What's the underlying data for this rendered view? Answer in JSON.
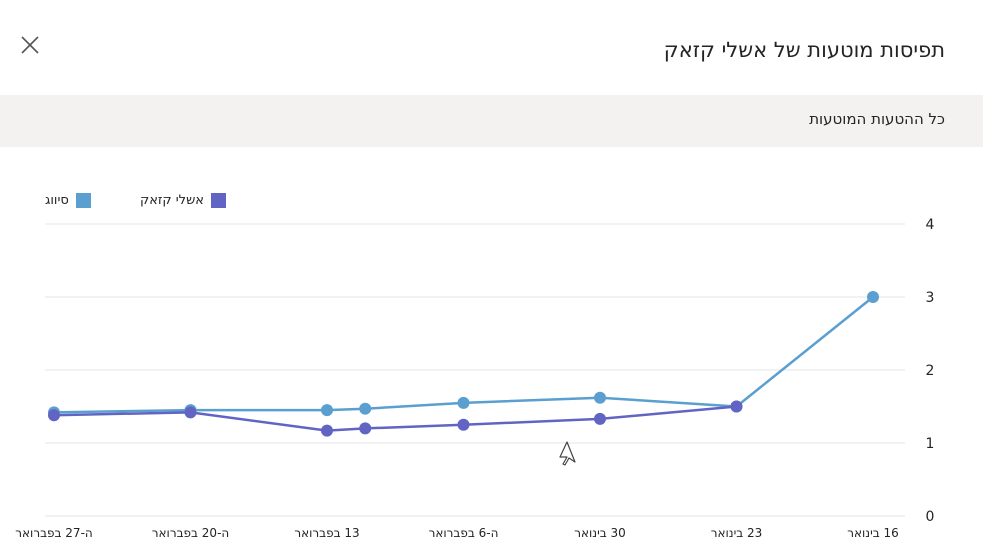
{
  "header": {
    "title": "תפיסות מוטעות של אשלי קזאק",
    "close_label": "close"
  },
  "section": {
    "title": "כל ההטעות המוטעות"
  },
  "colors": {
    "student": "#6264c4",
    "class_avg": "#5a9fcf",
    "grid": "#e5e5e5",
    "section_bg": "#f3f2f1"
  },
  "chart_data": {
    "type": "line",
    "categories": [
      "16 בינואר",
      "23 בינואר",
      "30 בינואר",
      "ה-6 בפברואר",
      "13 בפברואר",
      "ה-20 בפברואר",
      "ה-27 בפברואר"
    ],
    "ylim": [
      0,
      4
    ],
    "yticks": [
      "0",
      "1",
      "2",
      "3",
      "4"
    ],
    "legend_position": "top-left",
    "grid": true,
    "series": [
      {
        "name": "סיווג",
        "color": "#5a9fcf",
        "points": [
          {
            "x": 0,
            "y": 3.0
          },
          {
            "x": 1,
            "y": 1.5
          },
          {
            "x": 2,
            "y": 1.62
          },
          {
            "x": 3,
            "y": 1.55
          },
          {
            "x": 3.72,
            "y": 1.47
          },
          {
            "x": 4,
            "y": 1.45
          },
          {
            "x": 5,
            "y": 1.45
          },
          {
            "x": 6,
            "y": 1.42
          }
        ]
      },
      {
        "name": "אשלי קזאק",
        "color": "#6264c4",
        "points": [
          {
            "x": 1,
            "y": 1.5
          },
          {
            "x": 2,
            "y": 1.33
          },
          {
            "x": 3,
            "y": 1.25
          },
          {
            "x": 3.72,
            "y": 1.2
          },
          {
            "x": 4,
            "y": 1.17
          },
          {
            "x": 5,
            "y": 1.42
          },
          {
            "x": 6,
            "y": 1.38
          }
        ]
      }
    ]
  }
}
